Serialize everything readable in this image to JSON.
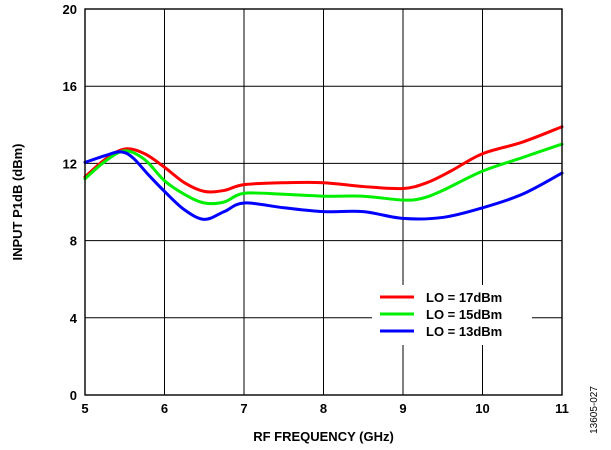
{
  "chart_data": {
    "type": "line",
    "title": "",
    "xlabel": "RF FREQUENCY (GHz)",
    "ylabel": "INPUT P1dB (dBm)",
    "xlim": [
      5,
      11
    ],
    "ylim": [
      0,
      20
    ],
    "xticks": [
      "5",
      "6",
      "7",
      "8",
      "9",
      "10",
      "11"
    ],
    "yticks": [
      "0",
      "4",
      "8",
      "12",
      "16",
      "20"
    ],
    "grid": true,
    "legend_position": "lower-right",
    "series": [
      {
        "name": "LO = 17dBm",
        "color": "#ff0000",
        "points": [
          [
            5.0,
            11.3
          ],
          [
            5.25,
            12.2
          ],
          [
            5.5,
            12.75
          ],
          [
            5.75,
            12.5
          ],
          [
            6.0,
            11.8
          ],
          [
            6.25,
            11.0
          ],
          [
            6.5,
            10.55
          ],
          [
            6.75,
            10.6
          ],
          [
            7.0,
            10.9
          ],
          [
            7.5,
            11.0
          ],
          [
            8.0,
            11.0
          ],
          [
            8.5,
            10.8
          ],
          [
            9.0,
            10.7
          ],
          [
            9.3,
            11.0
          ],
          [
            9.6,
            11.6
          ],
          [
            10.0,
            12.5
          ],
          [
            10.5,
            13.1
          ],
          [
            11.0,
            13.9
          ]
        ]
      },
      {
        "name": "LO = 15dBm",
        "color": "#00ee00",
        "points": [
          [
            5.0,
            11.2
          ],
          [
            5.25,
            12.1
          ],
          [
            5.5,
            12.65
          ],
          [
            5.75,
            12.2
          ],
          [
            6.0,
            11.1
          ],
          [
            6.25,
            10.4
          ],
          [
            6.5,
            9.95
          ],
          [
            6.75,
            10.0
          ],
          [
            7.0,
            10.45
          ],
          [
            7.5,
            10.4
          ],
          [
            8.0,
            10.3
          ],
          [
            8.5,
            10.3
          ],
          [
            9.0,
            10.1
          ],
          [
            9.25,
            10.2
          ],
          [
            9.5,
            10.6
          ],
          [
            10.0,
            11.6
          ],
          [
            10.5,
            12.3
          ],
          [
            11.0,
            13.0
          ]
        ]
      },
      {
        "name": "LO = 13dBm",
        "color": "#0000ff",
        "points": [
          [
            5.0,
            12.05
          ],
          [
            5.25,
            12.4
          ],
          [
            5.45,
            12.6
          ],
          [
            5.6,
            12.3
          ],
          [
            5.8,
            11.4
          ],
          [
            6.0,
            10.55
          ],
          [
            6.25,
            9.6
          ],
          [
            6.5,
            9.1
          ],
          [
            6.75,
            9.5
          ],
          [
            7.0,
            9.95
          ],
          [
            7.5,
            9.7
          ],
          [
            8.0,
            9.5
          ],
          [
            8.5,
            9.5
          ],
          [
            9.0,
            9.15
          ],
          [
            9.5,
            9.2
          ],
          [
            10.0,
            9.7
          ],
          [
            10.5,
            10.4
          ],
          [
            11.0,
            11.5
          ]
        ]
      }
    ]
  },
  "figure_id": "13605-027"
}
